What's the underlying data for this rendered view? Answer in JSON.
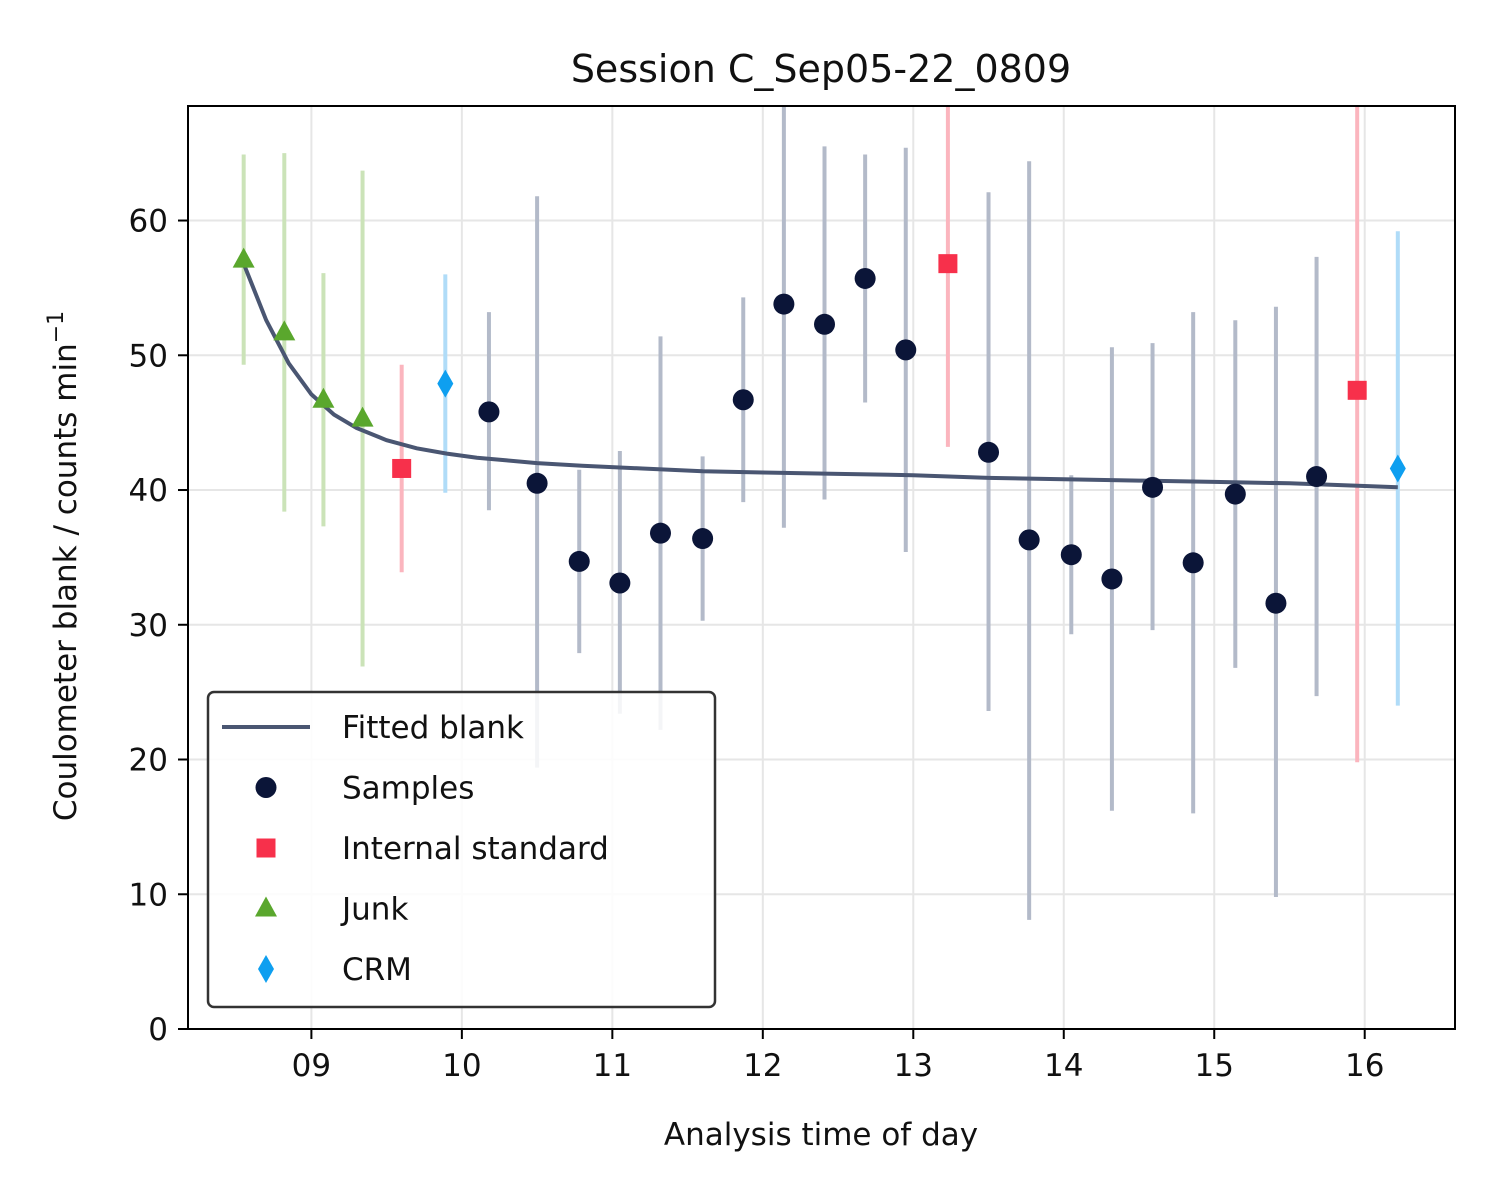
{
  "chart_data": {
    "type": "scatter",
    "title": "Session C_Sep05-22_0809",
    "xlabel": "Analysis time of day",
    "ylabel": "Coulometer blank / counts min",
    "ylabel_superscript": "−1",
    "xlim": [
      8.18,
      16.6
    ],
    "ylim": [
      0,
      68.5
    ],
    "x_ticks": [
      9,
      10,
      11,
      12,
      13,
      14,
      15,
      16
    ],
    "x_tick_labels": [
      "09",
      "10",
      "11",
      "12",
      "13",
      "14",
      "15",
      "16"
    ],
    "y_ticks": [
      0,
      10,
      20,
      30,
      40,
      50,
      60
    ],
    "y_tick_labels": [
      "0",
      "10",
      "20",
      "30",
      "40",
      "50",
      "60"
    ],
    "grid": true,
    "legend_position": "lower-left",
    "fit": {
      "name": "Fitted blank",
      "color": "#4a5672",
      "x": [
        8.55,
        8.7,
        8.85,
        9.0,
        9.15,
        9.3,
        9.5,
        9.7,
        9.9,
        10.1,
        10.3,
        10.5,
        10.8,
        11.2,
        11.6,
        12.0,
        12.5,
        13.0,
        13.5,
        14.0,
        14.5,
        15.0,
        15.5,
        16.0,
        16.22
      ],
      "y": [
        56.8,
        52.6,
        49.4,
        47.1,
        45.6,
        44.6,
        43.7,
        43.1,
        42.7,
        42.4,
        42.2,
        42.0,
        41.8,
        41.6,
        41.4,
        41.3,
        41.2,
        41.1,
        40.9,
        40.8,
        40.7,
        40.6,
        40.5,
        40.3,
        40.2
      ]
    },
    "series": [
      {
        "name": "Samples",
        "marker": "circle",
        "color": "#0b1538",
        "err_color": "#b3bac9",
        "points": [
          {
            "x": 10.18,
            "y": 45.8,
            "lo": 38.5,
            "hi": 53.2
          },
          {
            "x": 10.5,
            "y": 40.5,
            "lo": 19.4,
            "hi": 61.8
          },
          {
            "x": 10.78,
            "y": 34.7,
            "lo": 27.9,
            "hi": 41.5
          },
          {
            "x": 11.05,
            "y": 33.1,
            "lo": 23.4,
            "hi": 42.9
          },
          {
            "x": 11.32,
            "y": 36.8,
            "lo": 22.2,
            "hi": 51.4
          },
          {
            "x": 11.6,
            "y": 36.4,
            "lo": 30.3,
            "hi": 42.5
          },
          {
            "x": 11.87,
            "y": 46.7,
            "lo": 39.1,
            "hi": 54.3
          },
          {
            "x": 12.14,
            "y": 53.8,
            "lo": 37.2,
            "hi": 68.5
          },
          {
            "x": 12.41,
            "y": 52.3,
            "lo": 39.3,
            "hi": 65.5
          },
          {
            "x": 12.68,
            "y": 55.7,
            "lo": 46.5,
            "hi": 64.9
          },
          {
            "x": 12.95,
            "y": 50.4,
            "lo": 35.4,
            "hi": 65.4
          },
          {
            "x": 13.5,
            "y": 42.8,
            "lo": 23.6,
            "hi": 62.1
          },
          {
            "x": 13.77,
            "y": 36.3,
            "lo": 8.1,
            "hi": 64.4
          },
          {
            "x": 14.05,
            "y": 35.2,
            "lo": 29.3,
            "hi": 41.1
          },
          {
            "x": 14.32,
            "y": 33.4,
            "lo": 16.2,
            "hi": 50.6
          },
          {
            "x": 14.59,
            "y": 40.2,
            "lo": 29.6,
            "hi": 50.9
          },
          {
            "x": 14.86,
            "y": 34.6,
            "lo": 16.0,
            "hi": 53.2
          },
          {
            "x": 15.14,
            "y": 39.7,
            "lo": 26.8,
            "hi": 52.6
          },
          {
            "x": 15.41,
            "y": 31.6,
            "lo": 9.8,
            "hi": 53.6
          },
          {
            "x": 15.68,
            "y": 41.0,
            "lo": 24.7,
            "hi": 57.3
          }
        ]
      },
      {
        "name": "Internal standard",
        "marker": "square",
        "color": "#f7304b",
        "err_color": "#fbb5be",
        "points": [
          {
            "x": 9.6,
            "y": 41.6,
            "lo": 33.9,
            "hi": 49.3
          },
          {
            "x": 13.23,
            "y": 56.8,
            "lo": 43.2,
            "hi": 68.5
          },
          {
            "x": 15.95,
            "y": 47.4,
            "lo": 19.8,
            "hi": 68.5
          }
        ]
      },
      {
        "name": "Junk",
        "marker": "triangle",
        "color": "#5aa72d",
        "err_color": "#cbe3b8",
        "points": [
          {
            "x": 8.55,
            "y": 57.1,
            "lo": 49.3,
            "hi": 64.9
          },
          {
            "x": 8.82,
            "y": 51.7,
            "lo": 38.4,
            "hi": 65.0
          },
          {
            "x": 9.08,
            "y": 46.7,
            "lo": 37.3,
            "hi": 56.1
          },
          {
            "x": 9.34,
            "y": 45.3,
            "lo": 26.9,
            "hi": 63.7
          }
        ]
      },
      {
        "name": "CRM",
        "marker": "diamond",
        "color": "#0e9ff0",
        "err_color": "#b0dcf8",
        "points": [
          {
            "x": 9.89,
            "y": 47.9,
            "lo": 39.8,
            "hi": 56.0
          },
          {
            "x": 16.22,
            "y": 41.6,
            "lo": 24.0,
            "hi": 59.2
          }
        ]
      }
    ]
  }
}
